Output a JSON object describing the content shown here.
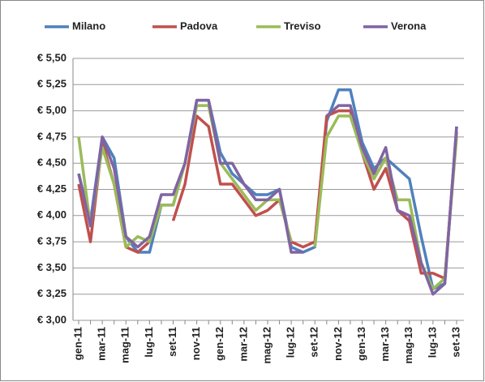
{
  "chart_data": {
    "type": "line",
    "categories": [
      "gen-11",
      null,
      "mar-11",
      null,
      "mag-11",
      null,
      "lug-11",
      null,
      "set-11",
      null,
      "nov-11",
      null,
      "gen-12",
      null,
      "mar-12",
      null,
      "mag-12",
      null,
      "lug-12",
      null,
      "set-12",
      null,
      "nov-12",
      null,
      "gen-13",
      null,
      "mar-13",
      null,
      "mag-13",
      null,
      "lug-13",
      null,
      "set-13"
    ],
    "series": [
      {
        "name": "Milano",
        "color": "#4f81bd",
        "values": [
          4.4,
          3.95,
          4.75,
          4.55,
          3.8,
          3.65,
          3.65,
          4.1,
          4.1,
          4.5,
          5.1,
          5.1,
          4.6,
          4.4,
          4.3,
          4.2,
          4.2,
          4.25,
          3.7,
          3.65,
          3.7,
          4.9,
          5.2,
          5.2,
          4.7,
          4.45,
          4.55,
          4.45,
          4.35,
          3.8,
          3.3,
          3.35,
          4.85
        ]
      },
      {
        "name": "Padova",
        "color": "#c0504d",
        "values": [
          4.3,
          3.75,
          4.7,
          4.3,
          3.7,
          3.65,
          3.75,
          null,
          3.95,
          4.3,
          4.95,
          4.85,
          4.3,
          4.3,
          4.15,
          4.0,
          4.05,
          4.15,
          3.75,
          3.7,
          3.75,
          4.95,
          5.0,
          5.0,
          4.6,
          4.25,
          4.45,
          4.05,
          3.95,
          3.45,
          3.45,
          3.4,
          4.8
        ]
      },
      {
        "name": "Treviso",
        "color": "#9bbb59",
        "values": [
          4.75,
          3.9,
          4.65,
          4.3,
          3.7,
          3.8,
          3.75,
          4.1,
          4.1,
          4.5,
          5.05,
          5.05,
          4.5,
          4.35,
          4.2,
          4.05,
          4.15,
          4.15,
          3.75,
          null,
          3.7,
          4.75,
          4.95,
          4.95,
          4.6,
          4.35,
          4.55,
          4.15,
          4.15,
          3.55,
          3.3,
          3.4,
          4.75
        ]
      },
      {
        "name": "Verona",
        "color": "#8064a2",
        "values": [
          4.4,
          3.9,
          4.75,
          4.45,
          3.8,
          3.7,
          3.8,
          4.2,
          4.2,
          4.5,
          5.1,
          5.1,
          4.5,
          4.5,
          4.3,
          4.15,
          4.15,
          4.25,
          3.65,
          3.65,
          null,
          4.95,
          5.05,
          5.05,
          4.65,
          4.4,
          4.65,
          4.05,
          4.0,
          3.55,
          3.25,
          3.35,
          4.85
        ]
      }
    ],
    "ylim": [
      3.0,
      5.5
    ],
    "yticks": [
      {
        "value": 3.0,
        "label": "€ 3,00"
      },
      {
        "value": 3.25,
        "label": "€ 3,25"
      },
      {
        "value": 3.5,
        "label": "€ 3,50"
      },
      {
        "value": 3.75,
        "label": "€ 3,75"
      },
      {
        "value": 4.0,
        "label": "€ 4,00"
      },
      {
        "value": 4.25,
        "label": "€ 4,25"
      },
      {
        "value": 4.5,
        "label": "€ 4,50"
      },
      {
        "value": 4.75,
        "label": "€ 4,75"
      },
      {
        "value": 5.0,
        "label": "€ 5,00"
      },
      {
        "value": 5.25,
        "label": "€ 5,25"
      },
      {
        "value": 5.5,
        "label": "€ 5,50"
      }
    ],
    "grid": true,
    "legend": "top"
  }
}
